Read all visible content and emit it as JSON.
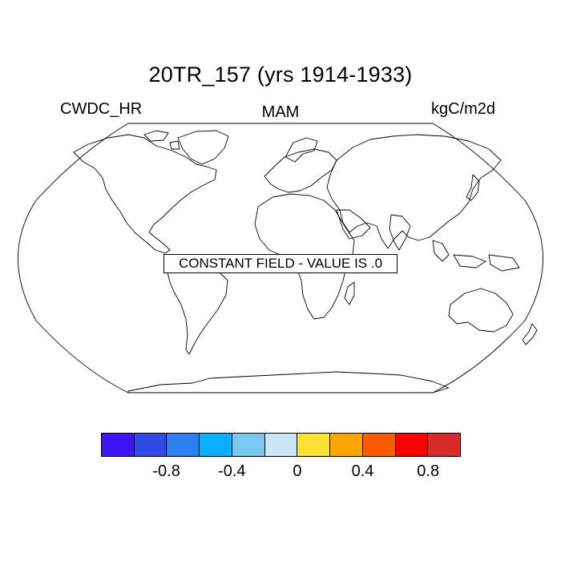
{
  "title": "20TR_157 (yrs 1914-1933)",
  "left_label": "CWDC_HR",
  "center_label": "MAM",
  "right_label": "kgC/m2d",
  "message": "CONSTANT FIELD - VALUE IS .0",
  "colorbar": {
    "colors": [
      "#3d14f5",
      "#2f4ae6",
      "#2c7ff0",
      "#0aafff",
      "#78c8ef",
      "#c8e6f5",
      "#ffe135",
      "#ffa500",
      "#ff5a00",
      "#ff0000",
      "#d92a2a"
    ],
    "boundaries": [
      -1.0,
      -0.8,
      -0.6,
      -0.4,
      -0.2,
      0,
      0.2,
      0.4,
      0.6,
      0.8,
      1.0
    ],
    "labels": [
      {
        "text": "-0.8",
        "value": -0.8
      },
      {
        "text": "-0.4",
        "value": -0.4
      },
      {
        "text": "0",
        "value": 0
      },
      {
        "text": "0.4",
        "value": 0.4
      },
      {
        "text": "0.8",
        "value": 0.8
      }
    ]
  }
}
